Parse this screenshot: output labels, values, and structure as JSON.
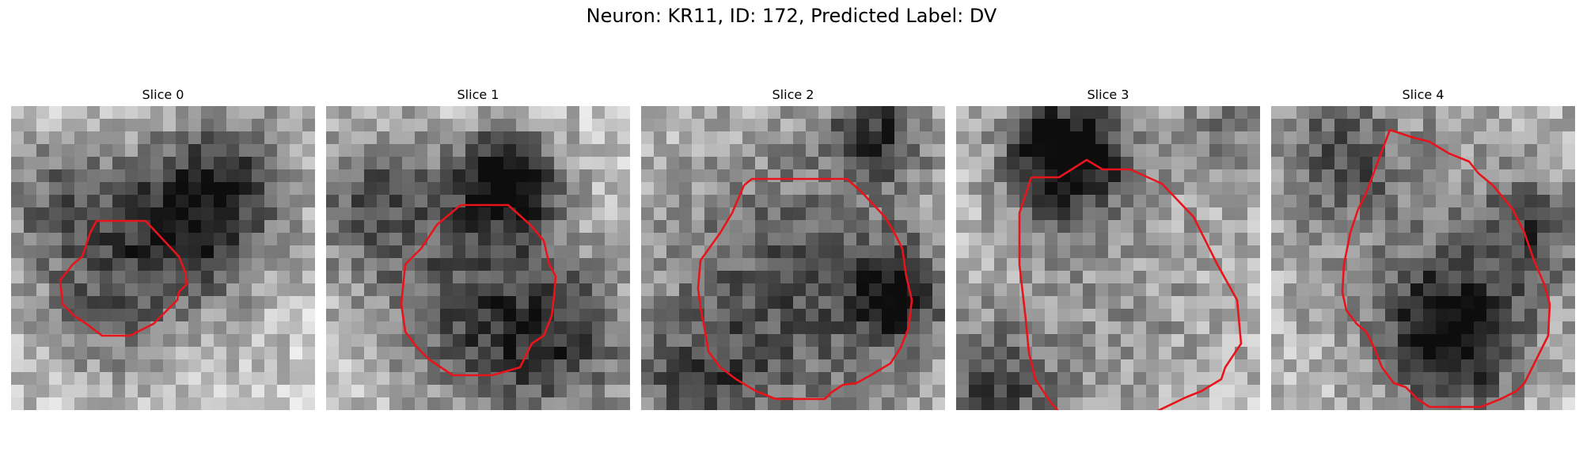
{
  "figure": {
    "title": "Neuron: KR11, ID: 172, Predicted Label: DV"
  },
  "panels": [
    {
      "title": "Slice 0"
    },
    {
      "title": "Slice 1"
    },
    {
      "title": "Slice 2"
    },
    {
      "title": "Slice 3"
    },
    {
      "title": "Slice 4"
    }
  ],
  "colors": {
    "contour": "#e8141c",
    "background": "#ffffff"
  }
}
